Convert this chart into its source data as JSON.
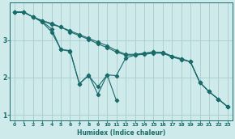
{
  "xlabel": "Humidex (Indice chaleur)",
  "background_color": "#ceeaea",
  "grid_color": "#aacccc",
  "line_color": "#1a6b6b",
  "xlim": [
    -0.5,
    23.5
  ],
  "ylim": [
    0.85,
    4.0
  ],
  "yticks": [
    1,
    2,
    3
  ],
  "xticks": [
    0,
    1,
    2,
    3,
    4,
    5,
    6,
    7,
    8,
    9,
    10,
    11,
    12,
    13,
    14,
    15,
    16,
    17,
    18,
    19,
    20,
    21,
    22,
    23
  ],
  "line1_x": [
    0,
    1,
    2,
    3,
    4,
    5,
    6,
    7,
    8,
    9,
    10,
    11,
    12,
    13,
    14,
    15,
    16,
    17,
    18,
    19,
    20,
    21,
    22,
    23
  ],
  "line1_y": [
    3.75,
    3.75,
    3.62,
    3.52,
    3.45,
    3.35,
    3.22,
    3.12,
    3.02,
    2.9,
    2.8,
    2.68,
    2.6,
    2.6,
    2.62,
    2.65,
    2.65,
    2.55,
    2.48,
    2.42,
    1.87,
    1.62,
    1.42,
    1.22
  ],
  "line2_x": [
    0,
    1,
    2,
    3,
    4,
    5,
    6,
    7,
    8,
    9,
    10,
    11,
    12,
    13,
    14,
    15,
    16,
    17,
    18,
    19,
    20,
    21,
    22,
    23
  ],
  "line2_y": [
    3.75,
    3.75,
    3.62,
    3.52,
    3.42,
    3.35,
    3.25,
    3.15,
    3.05,
    2.95,
    2.85,
    2.72,
    2.62,
    2.62,
    2.65,
    2.68,
    2.67,
    2.57,
    2.5,
    2.42,
    1.87,
    1.62,
    1.42,
    1.22
  ],
  "line3_x": [
    0,
    1,
    2,
    3,
    4,
    5,
    6,
    7,
    8,
    9,
    10,
    11,
    12,
    13,
    14,
    15,
    16,
    17,
    18,
    19,
    20,
    21,
    22,
    23
  ],
  "line3_y": [
    3.75,
    3.75,
    3.62,
    3.5,
    3.3,
    2.75,
    2.7,
    1.83,
    2.05,
    1.75,
    2.07,
    2.05,
    2.52,
    2.6,
    2.65,
    2.68,
    2.67,
    2.57,
    2.5,
    2.42,
    1.87,
    1.62,
    1.42,
    1.22
  ],
  "line4_x": [
    0,
    1,
    2,
    3,
    4,
    5,
    6,
    7,
    8,
    9,
    10,
    11
  ],
  "line4_y": [
    3.75,
    3.75,
    3.62,
    3.48,
    3.22,
    2.75,
    2.72,
    1.83,
    2.07,
    1.55,
    2.07,
    1.38
  ]
}
